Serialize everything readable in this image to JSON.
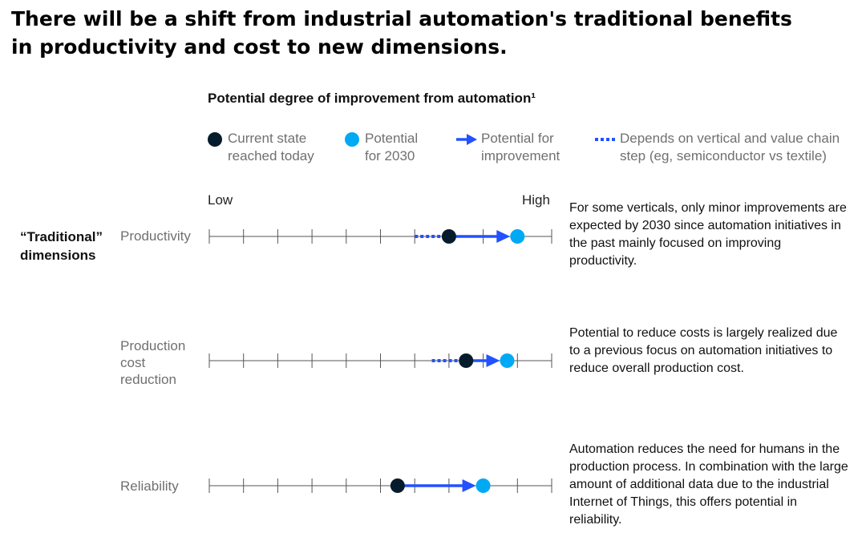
{
  "title": "There will be a shift from industrial automation's traditional benefits in productivity and cost to new dimensions.",
  "chart_data": {
    "type": "dot-arrow",
    "title": "Potential degree of improvement from automation¹",
    "axis": {
      "low_label": "Low",
      "high_label": "High",
      "min": 0,
      "max": 10,
      "ticks": 11
    },
    "legend": [
      {
        "key": "current",
        "label_line1": "Current state",
        "label_line2": "reached today"
      },
      {
        "key": "potential",
        "label_line1": "Potential",
        "label_line2": "for 2030"
      },
      {
        "key": "arrow",
        "label_line1": "Potential for",
        "label_line2": "improvement"
      },
      {
        "key": "dotted",
        "label_line1": "Depends on vertical and value chain",
        "label_line2": "step (eg, semiconductor vs textile)"
      }
    ],
    "group_label": {
      "line1": "“Traditional”",
      "line2": "dimensions"
    },
    "rows": [
      {
        "label_lines": [
          "Productivity"
        ],
        "dotted_from": 6.0,
        "current": 7.0,
        "potential": 9.0,
        "annotation": "For some verticals, only minor improvements are expected by 2030 since automation initiatives in the past mainly focused on improving productivity."
      },
      {
        "label_lines": [
          "Production",
          "cost",
          "reduction"
        ],
        "dotted_from": 6.5,
        "current": 7.5,
        "potential": 8.7,
        "annotation": "Potential to reduce costs is largely realized due to a previous focus on automation initiatives to reduce overall production cost."
      },
      {
        "label_lines": [
          "Reliability"
        ],
        "dotted_from": null,
        "current": 5.5,
        "potential": 8.0,
        "annotation": "Automation reduces the need for humans in the production process. In combination with the large amount of additional data due to the industrial Internet of Things, this offers potential in reliability."
      }
    ],
    "colors": {
      "current": "#051c2c",
      "potential": "#00a9f4",
      "arrow": "#2251ff",
      "axis": "#555555"
    }
  }
}
